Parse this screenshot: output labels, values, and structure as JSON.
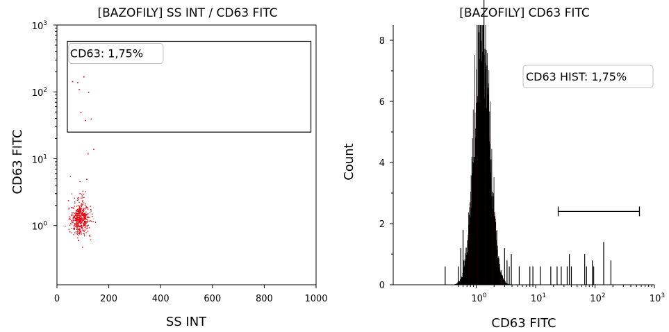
{
  "chart_data": [
    {
      "type": "scatter",
      "title": "[BAZOFILY] SS INT / CD63 FITC",
      "xlabel": "SS INT",
      "ylabel": "CD63 FITC",
      "xlim": [
        0,
        1000
      ],
      "xticks": [
        "0",
        "200",
        "400",
        "600",
        "800",
        "1000"
      ],
      "ylim": [
        0.13,
        1000
      ],
      "yscale": "log",
      "yticks": [
        {
          "base": "10",
          "exp": "0",
          "value": 1
        },
        {
          "base": "10",
          "exp": "1",
          "value": 10
        },
        {
          "base": "10",
          "exp": "2",
          "value": 100
        },
        {
          "base": "10",
          "exp": "3",
          "value": 1000
        }
      ],
      "point_color": "#e8000b",
      "gate": {
        "label": "CD63: 1,75%",
        "x": [
          40,
          980
        ],
        "y": [
          25,
          570
        ]
      },
      "grid": false,
      "outliers": [
        [
          58,
          145
        ],
        [
          102,
          170
        ],
        [
          78,
          140
        ],
        [
          84,
          110
        ],
        [
          120,
          100
        ],
        [
          90,
          50
        ],
        [
          108,
          38
        ],
        [
          130,
          40
        ],
        [
          140,
          14
        ],
        [
          118,
          12
        ],
        [
          113,
          5
        ],
        [
          100,
          3
        ]
      ],
      "cluster": {
        "n": 450,
        "x_mean": 88,
        "x_sd": 18,
        "log10y_mean": 0.1,
        "log10y_sd": 0.12
      }
    },
    {
      "type": "area",
      "title": "[BAZOFILY] CD63 FITC",
      "xlabel": "CD63 FITC",
      "ylabel": "Count",
      "xscale": "log",
      "xlim": [
        0.04,
        1000
      ],
      "xticks": [
        {
          "base": "10",
          "exp": "0",
          "value": 1
        },
        {
          "base": "10",
          "exp": "1",
          "value": 10
        },
        {
          "base": "10",
          "exp": "2",
          "value": 100
        },
        {
          "base": "10",
          "exp": "3",
          "value": 1000
        }
      ],
      "ylim": [
        0,
        8.5
      ],
      "yticks": [
        "0",
        "2",
        "4",
        "6",
        "8"
      ],
      "fill_color": "#ff0000",
      "line_color": "#000000",
      "grid": false,
      "marker": {
        "label": "CD63 HIST: 1,75%",
        "x_range": [
          24,
          560
        ],
        "y": 2.4
      },
      "peak": {
        "x_center": 1.25,
        "log10_sd": 0.13,
        "height": 6.8
      },
      "spikes": [
        [
          0.3,
          0.3
        ],
        [
          0.5,
          0.3
        ],
        [
          0.55,
          0.6
        ],
        [
          0.6,
          0.9
        ],
        [
          0.62,
          0.4
        ],
        [
          1.35,
          8.0
        ],
        [
          3.0,
          0.6
        ],
        [
          3.3,
          0.4
        ],
        [
          3.6,
          0.3
        ],
        [
          3.9,
          0.5
        ],
        [
          5.3,
          0.3
        ],
        [
          8.0,
          0.3
        ],
        [
          9.0,
          0.3
        ],
        [
          12.0,
          0.3
        ],
        [
          18.0,
          0.3
        ],
        [
          23.0,
          0.3
        ],
        [
          27.0,
          0.3
        ],
        [
          34.0,
          0.3
        ],
        [
          37.0,
          0.5
        ],
        [
          40.0,
          0.3
        ],
        [
          67.0,
          0.5
        ],
        [
          72.0,
          0.3
        ],
        [
          90.0,
          0.4
        ],
        [
          95.0,
          0.3
        ],
        [
          140.0,
          0.7
        ],
        [
          185.0,
          0.4
        ]
      ]
    }
  ]
}
